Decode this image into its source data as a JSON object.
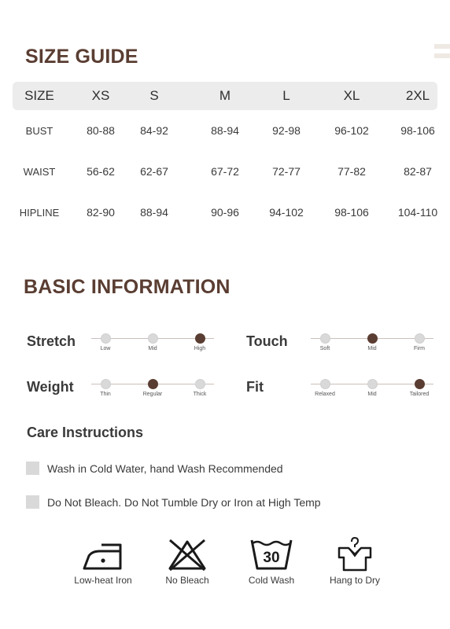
{
  "size_guide": {
    "title": "SIZE GUIDE",
    "header": [
      "SIZE",
      "XS",
      "S",
      "M",
      "L",
      "XL",
      "2XL"
    ],
    "rows": [
      [
        "BUST",
        "80-88",
        "84-92",
        "88-94",
        "92-98",
        "96-102",
        "98-106"
      ],
      [
        "WAIST",
        "56-62",
        "62-67",
        "67-72",
        "72-77",
        "77-82",
        "82-87"
      ],
      [
        "HIPLINE",
        "82-90",
        "88-94",
        "90-96",
        "94-102",
        "98-106",
        "104-110"
      ]
    ]
  },
  "basic_info": {
    "title": "BASIC INFORMATION",
    "scales": [
      {
        "label": "Stretch",
        "ticks": [
          "Low",
          "Mid",
          "High"
        ],
        "selected": 2
      },
      {
        "label": "Touch",
        "ticks": [
          "Soft",
          "Mid",
          "Firm"
        ],
        "selected": 1
      },
      {
        "label": "Weight",
        "ticks": [
          "Thin",
          "Regular",
          "Thick"
        ],
        "selected": 1
      },
      {
        "label": "Fit",
        "ticks": [
          "Relaxed",
          "Mid",
          "Tailored"
        ],
        "selected": 2
      }
    ]
  },
  "care": {
    "title": "Care Instructions",
    "items": [
      "Wash in Cold Water, hand Wash Recommended",
      "Do Not Bleach. Do Not Tumble Dry or Iron at High Temp"
    ],
    "icons": [
      {
        "icon": "low-heat-iron-icon",
        "label": "Low-heat Iron"
      },
      {
        "icon": "no-bleach-icon",
        "label": "No Bleach"
      },
      {
        "icon": "cold-wash-icon",
        "label": "Cold Wash",
        "temp": "30"
      },
      {
        "icon": "hang-to-dry-icon",
        "label": "Hang to Dry"
      }
    ]
  },
  "colors": {
    "accent": "#5a3d32",
    "inactive_dot": "#d9d9d9",
    "table_header": "#ececec"
  }
}
